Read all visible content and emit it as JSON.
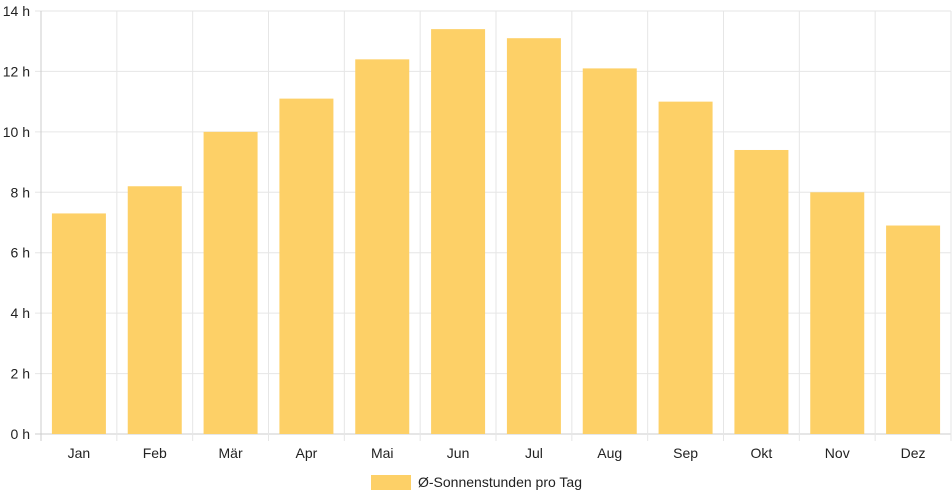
{
  "chart_data": {
    "type": "bar",
    "categories": [
      "Jan",
      "Feb",
      "Mär",
      "Apr",
      "Mai",
      "Jun",
      "Jul",
      "Aug",
      "Sep",
      "Okt",
      "Nov",
      "Dez"
    ],
    "series": [
      {
        "name": "Ø-Sonnenstunden pro Tag",
        "values": [
          7.3,
          8.2,
          10.0,
          11.1,
          12.4,
          13.4,
          13.1,
          12.1,
          11.0,
          9.4,
          8.0,
          6.9
        ],
        "color": "#fdd067"
      }
    ],
    "y_ticks": [
      "0 h",
      "2 h",
      "4 h",
      "6 h",
      "8 h",
      "10 h",
      "12 h",
      "14 h"
    ],
    "ylim": [
      0,
      14
    ],
    "grid": true,
    "legend": "bottom-center",
    "colors": {
      "grid": "#e6e6e6",
      "axis": "#cccccc",
      "text": "#222222"
    }
  }
}
